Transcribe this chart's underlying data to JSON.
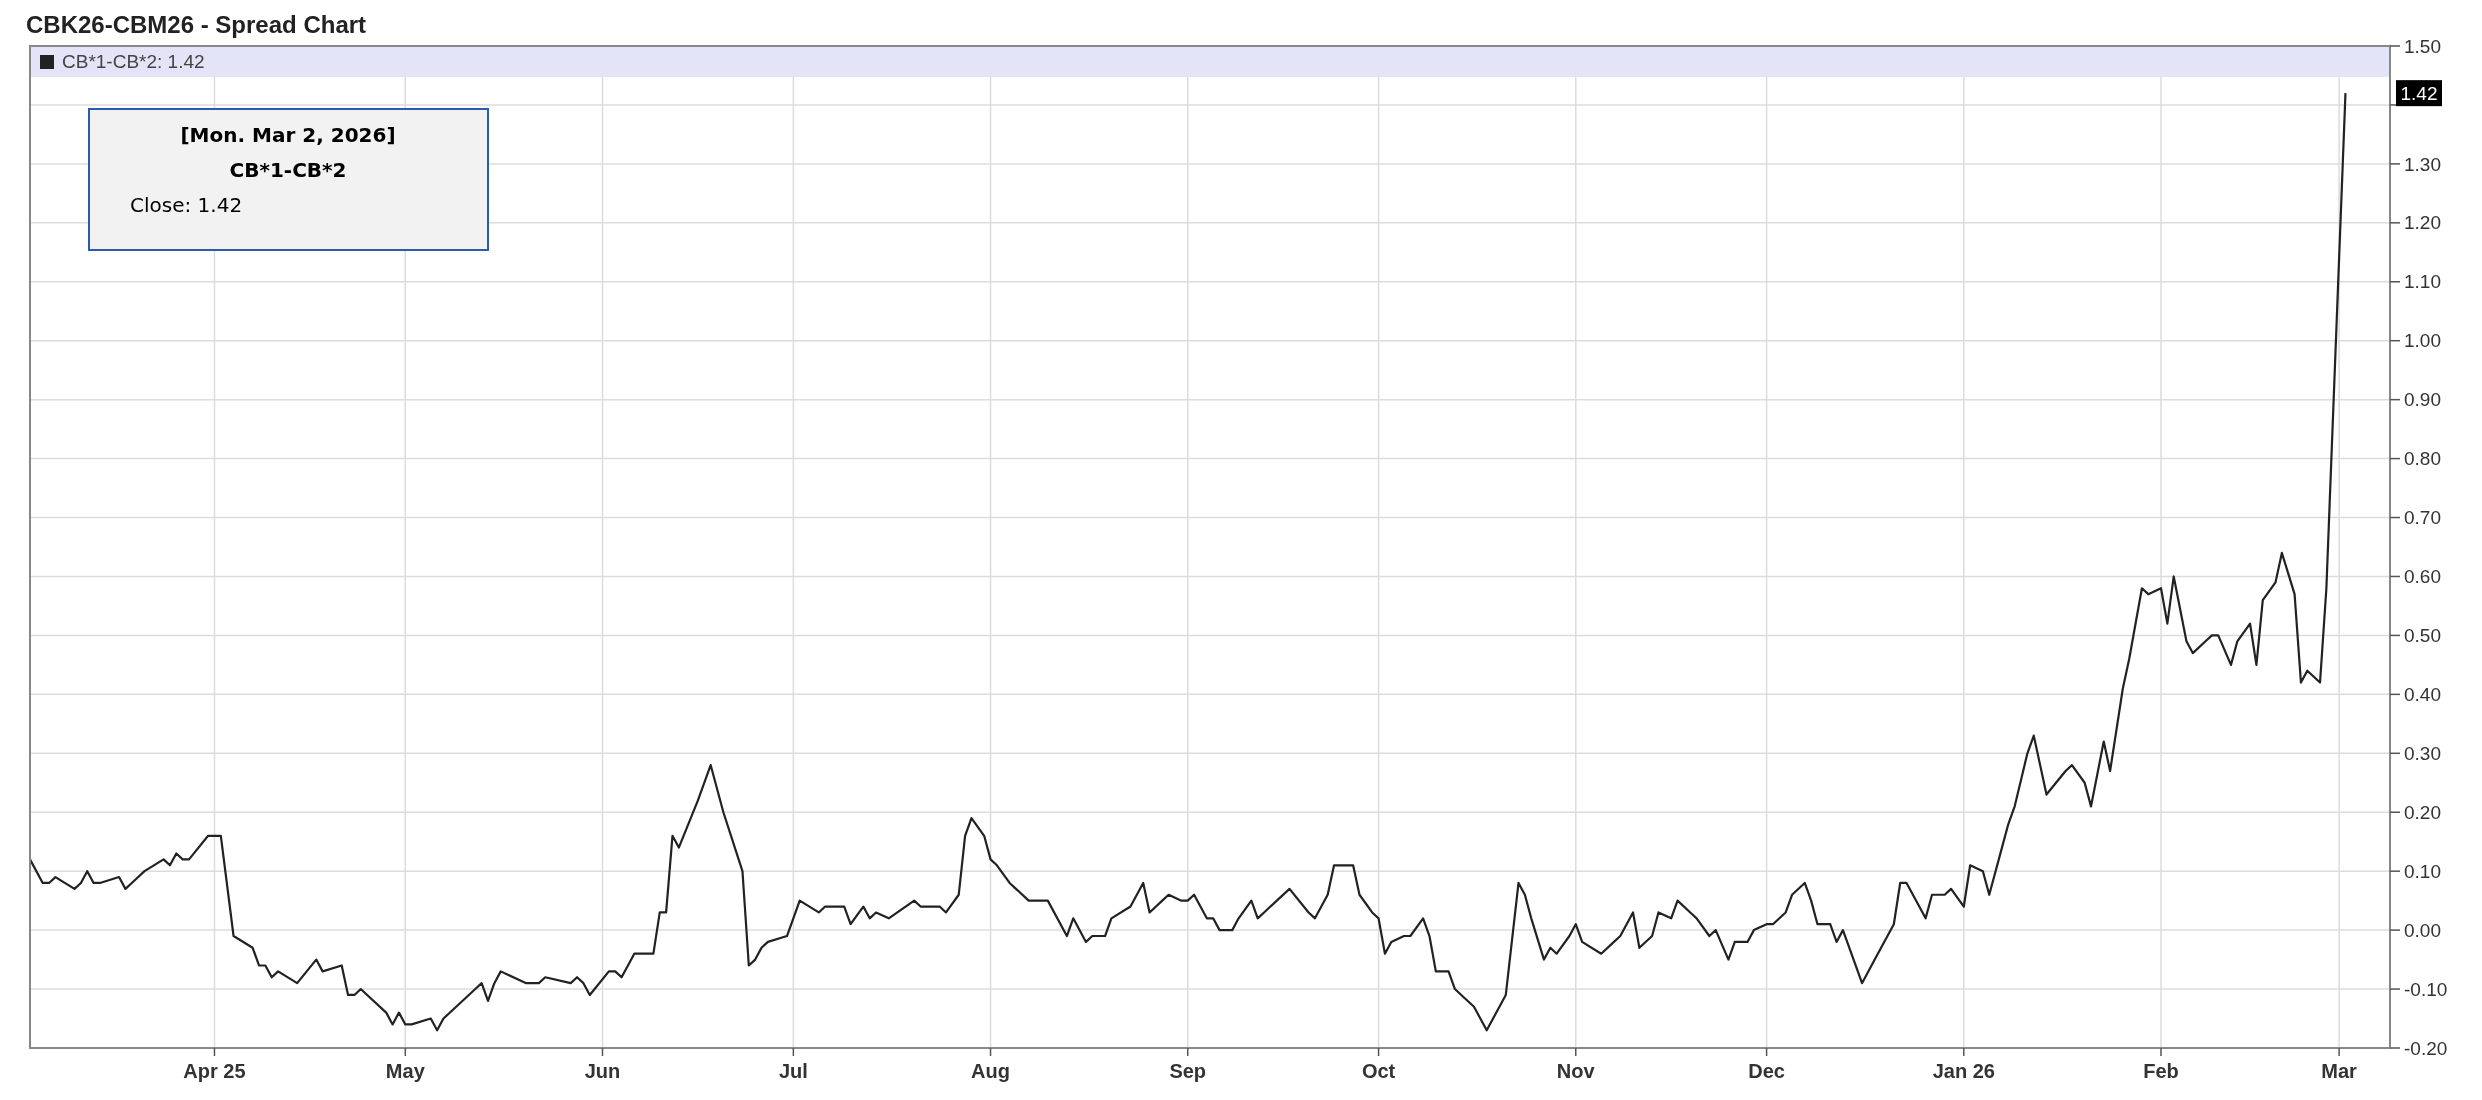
{
  "chart_data": {
    "type": "line",
    "title": "CBK26-CBM26 - Spread Chart",
    "legend": "top left",
    "grid": true,
    "marker": "none",
    "line_style": "solid",
    "xlim": [
      "2025-03-03",
      "2026-03-09"
    ],
    "xticks": [
      {
        "value": "2025-04-01",
        "label": "Apr 25"
      },
      {
        "value": "2025-05-01",
        "label": "May"
      },
      {
        "value": "2025-06-01",
        "label": "Jun"
      },
      {
        "value": "2025-07-01",
        "label": "Jul"
      },
      {
        "value": "2025-08-01",
        "label": "Aug"
      },
      {
        "value": "2025-09-01",
        "label": "Sep"
      },
      {
        "value": "2025-10-01",
        "label": "Oct"
      },
      {
        "value": "2025-11-01",
        "label": "Nov"
      },
      {
        "value": "2025-12-01",
        "label": "Dec"
      },
      {
        "value": "2026-01-01",
        "label": "Jan 26"
      },
      {
        "value": "2026-02-01",
        "label": "Feb"
      },
      {
        "value": "2026-03-01",
        "label": "Mar"
      }
    ],
    "ylim": [
      -0.2,
      1.5
    ],
    "yticks": [
      {
        "value": -0.2,
        "label": "-0.20"
      },
      {
        "value": -0.1,
        "label": "-0.10"
      },
      {
        "value": 0,
        "label": "0.00"
      },
      {
        "value": 0.1,
        "label": "0.10"
      },
      {
        "value": 0.2,
        "label": "0.20"
      },
      {
        "value": 0.3,
        "label": "0.30"
      },
      {
        "value": 0.4,
        "label": "0.40"
      },
      {
        "value": 0.5,
        "label": "0.50"
      },
      {
        "value": 0.6,
        "label": "0.60"
      },
      {
        "value": 0.7,
        "label": "0.70"
      },
      {
        "value": 0.8,
        "label": "0.80"
      },
      {
        "value": 0.9,
        "label": "0.90"
      },
      {
        "value": 1,
        "label": "1.00"
      },
      {
        "value": 1.1,
        "label": "1.10"
      },
      {
        "value": 1.2,
        "label": "1.20"
      },
      {
        "value": 1.3,
        "label": "1.30"
      },
      {
        "value": 1.4,
        "label": null
      },
      {
        "value": 1.5,
        "label": "1.50"
      }
    ],
    "annotations": [
      "[Mon. Mar 2, 2026]",
      "CB*1-CB*2",
      "Close: 1.42",
      {
        "text": "1.42",
        "x": "2026-03-02",
        "y": 1.42
      }
    ],
    "x": [
      "2025-03-03",
      "2025-03-05",
      "2025-03-06",
      "2025-03-07",
      "2025-03-10",
      "2025-03-11",
      "2025-03-12",
      "2025-03-13",
      "2025-03-14",
      "2025-03-17",
      "2025-03-18",
      "2025-03-19",
      "2025-03-21",
      "2025-03-24",
      "2025-03-25",
      "2025-03-26",
      "2025-03-27",
      "2025-03-28",
      "2025-03-31",
      "2025-04-02",
      "2025-04-04",
      "2025-04-07",
      "2025-04-08",
      "2025-04-09",
      "2025-04-10",
      "2025-04-11",
      "2025-04-14",
      "2025-04-17",
      "2025-04-18",
      "2025-04-21",
      "2025-04-22",
      "2025-04-23",
      "2025-04-24",
      "2025-04-25",
      "2025-04-28",
      "2025-04-29",
      "2025-04-30",
      "2025-05-01",
      "2025-05-02",
      "2025-05-05",
      "2025-05-06",
      "2025-05-07",
      "2025-05-09",
      "2025-05-12",
      "2025-05-13",
      "2025-05-14",
      "2025-05-15",
      "2025-05-16",
      "2025-05-20",
      "2025-05-22",
      "2025-05-23",
      "2025-05-27",
      "2025-05-28",
      "2025-05-29",
      "2025-05-30",
      "2025-06-02",
      "2025-06-03",
      "2025-06-04",
      "2025-06-06",
      "2025-06-09",
      "2025-06-10",
      "2025-06-11",
      "2025-06-12",
      "2025-06-13",
      "2025-06-16",
      "2025-06-18",
      "2025-06-20",
      "2025-06-23",
      "2025-06-24",
      "2025-06-25",
      "2025-06-26",
      "2025-06-27",
      "2025-06-30",
      "2025-07-02",
      "2025-07-05",
      "2025-07-06",
      "2025-07-09",
      "2025-07-10",
      "2025-07-12",
      "2025-07-13",
      "2025-07-14",
      "2025-07-16",
      "2025-07-20",
      "2025-07-21",
      "2025-07-24",
      "2025-07-25",
      "2025-07-27",
      "2025-07-28",
      "2025-07-29",
      "2025-07-31",
      "2025-08-01",
      "2025-08-02",
      "2025-08-04",
      "2025-08-05",
      "2025-08-07",
      "2025-08-10",
      "2025-08-13",
      "2025-08-14",
      "2025-08-16",
      "2025-08-17",
      "2025-08-19",
      "2025-08-20",
      "2025-08-23",
      "2025-08-25",
      "2025-08-26",
      "2025-08-28",
      "2025-08-29",
      "2025-08-31",
      "2025-09-01",
      "2025-09-02",
      "2025-09-04",
      "2025-09-05",
      "2025-09-06",
      "2025-09-08",
      "2025-09-09",
      "2025-09-11",
      "2025-09-12",
      "2025-09-13",
      "2025-09-15",
      "2025-09-17",
      "2025-09-20",
      "2025-09-21",
      "2025-09-23",
      "2025-09-24",
      "2025-09-27",
      "2025-09-28",
      "2025-09-30",
      "2025-10-01",
      "2025-10-02",
      "2025-10-03",
      "2025-10-05",
      "2025-10-06",
      "2025-10-08",
      "2025-10-09",
      "2025-10-10",
      "2025-10-12",
      "2025-10-13",
      "2025-10-14",
      "2025-10-16",
      "2025-10-18",
      "2025-10-21",
      "2025-10-23",
      "2025-10-24",
      "2025-10-25",
      "2025-10-27",
      "2025-10-28",
      "2025-10-29",
      "2025-10-31",
      "2025-11-01",
      "2025-11-02",
      "2025-11-05",
      "2025-11-07",
      "2025-11-08",
      "2025-11-10",
      "2025-11-11",
      "2025-11-13",
      "2025-11-14",
      "2025-11-16",
      "2025-11-17",
      "2025-11-19",
      "2025-11-20",
      "2025-11-22",
      "2025-11-23",
      "2025-11-25",
      "2025-11-26",
      "2025-11-28",
      "2025-11-29",
      "2025-12-01",
      "2025-12-02",
      "2025-12-04",
      "2025-12-05",
      "2025-12-07",
      "2025-12-08",
      "2025-12-09",
      "2025-12-11",
      "2025-12-12",
      "2025-12-13",
      "2025-12-15",
      "2025-12-16",
      "2025-12-18",
      "2025-12-21",
      "2025-12-22",
      "2025-12-23",
      "2025-12-26",
      "2025-12-27",
      "2025-12-29",
      "2025-12-30",
      "2026-01-01",
      "2026-01-02",
      "2026-01-04",
      "2026-01-05",
      "2026-01-07",
      "2026-01-08",
      "2026-01-09",
      "2026-01-11",
      "2026-01-12",
      "2026-01-14",
      "2026-01-17",
      "2026-01-18",
      "2026-01-20",
      "2026-01-21",
      "2026-01-23",
      "2026-01-24",
      "2026-01-26",
      "2026-01-27",
      "2026-01-29",
      "2026-01-30",
      "2026-02-01",
      "2026-02-02",
      "2026-02-03",
      "2026-02-05",
      "2026-02-06",
      "2026-02-08",
      "2026-02-09",
      "2026-02-10",
      "2026-02-12",
      "2026-02-13",
      "2026-02-15",
      "2026-02-16",
      "2026-02-17",
      "2026-02-19",
      "2026-02-20",
      "2026-02-22",
      "2026-02-23",
      "2026-02-24",
      "2026-02-26",
      "2026-02-27",
      "2026-03-02"
    ],
    "series": [
      {
        "name": "CB*1-CB*2: 1.42",
        "color": "#222222",
        "values": [
          0.12,
          0.08,
          0.08,
          0.09,
          0.07,
          0.08,
          0.1,
          0.08,
          0.08,
          0.09,
          0.07,
          0.08,
          0.1,
          0.12,
          0.11,
          0.13,
          0.12,
          0.12,
          0.16,
          0.16,
          -0.01,
          -0.03,
          -0.06,
          -0.06,
          -0.08,
          -0.07,
          -0.09,
          -0.05,
          -0.07,
          -0.06,
          -0.11,
          -0.11,
          -0.1,
          -0.11,
          -0.14,
          -0.16,
          -0.14,
          -0.16,
          -0.16,
          -0.15,
          -0.17,
          -0.15,
          -0.13,
          -0.1,
          -0.09,
          -0.12,
          -0.09,
          -0.07,
          -0.09,
          -0.09,
          -0.08,
          -0.09,
          -0.08,
          -0.09,
          -0.11,
          -0.07,
          -0.07,
          -0.08,
          -0.04,
          -0.04,
          0.03,
          0.03,
          0.16,
          0.14,
          0.22,
          0.28,
          0.2,
          0.1,
          -0.06,
          -0.05,
          -0.03,
          -0.02,
          -0.01,
          0.05,
          0.03,
          0.04,
          0.04,
          0.01,
          0.04,
          0.02,
          0.03,
          0.02,
          0.05,
          0.04,
          0.04,
          0.03,
          0.06,
          0.16,
          0.19,
          0.16,
          0.12,
          0.11,
          0.08,
          0.07,
          0.05,
          0.05,
          -0.01,
          0.02,
          -0.02,
          -0.01,
          -0.01,
          0.02,
          0.04,
          0.08,
          0.03,
          0.05,
          0.06,
          0.05,
          0.05,
          0.06,
          0.02,
          0.02,
          0.0,
          0.0,
          0.02,
          0.05,
          0.02,
          0.03,
          0.05,
          0.07,
          0.03,
          0.02,
          0.06,
          0.11,
          0.11,
          0.06,
          0.03,
          0.02,
          -0.04,
          -0.02,
          -0.01,
          -0.01,
          0.02,
          -0.01,
          -0.07,
          -0.07,
          -0.1,
          -0.11,
          -0.13,
          -0.17,
          -0.11,
          0.08,
          0.06,
          0.02,
          -0.05,
          -0.03,
          -0.04,
          -0.01,
          0.01,
          -0.02,
          -0.04,
          -0.02,
          -0.01,
          0.03,
          -0.03,
          -0.01,
          0.03,
          0.02,
          0.05,
          0.03,
          0.02,
          -0.01,
          0.0,
          -0.05,
          -0.02,
          -0.02,
          0.0,
          0.01,
          0.01,
          0.03,
          0.06,
          0.08,
          0.05,
          0.01,
          0.01,
          -0.02,
          0.0,
          -0.06,
          -0.09,
          -0.05,
          0.01,
          0.08,
          0.08,
          0.02,
          0.06,
          0.06,
          0.07,
          0.04,
          0.11,
          0.1,
          0.06,
          0.14,
          0.18,
          0.21,
          0.3,
          0.33,
          0.23,
          0.27,
          0.28,
          0.25,
          0.21,
          0.32,
          0.27,
          0.41,
          0.46,
          0.58,
          0.57,
          0.58,
          0.52,
          0.6,
          0.49,
          0.47,
          0.49,
          0.5,
          0.5,
          0.45,
          0.49,
          0.52,
          0.45,
          0.56,
          0.59,
          0.64,
          0.57,
          0.42,
          0.44,
          0.42,
          0.58,
          1.42
        ]
      }
    ]
  }
}
